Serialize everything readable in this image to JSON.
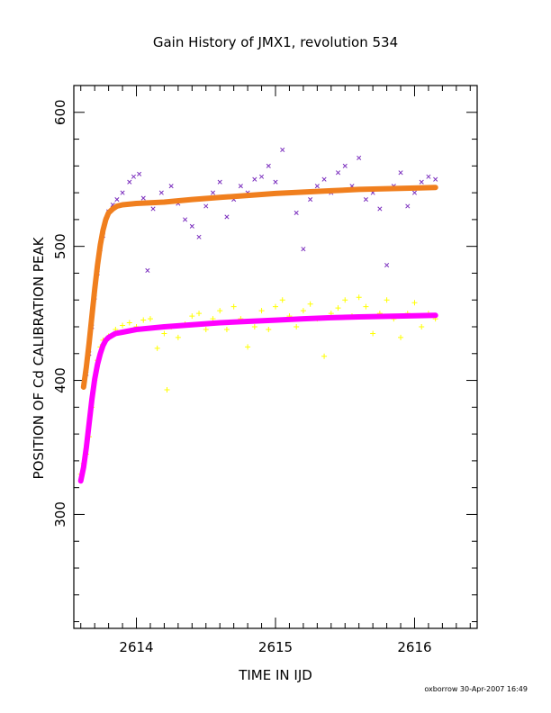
{
  "chart_data": {
    "type": "scatter",
    "title": "Gain History of JMX1, revolution 534",
    "xlabel": "TIME IN IJD",
    "ylabel": "POSITION OF Cd CALIBRATION PEAK",
    "xlim": [
      2613.55,
      2616.45
    ],
    "ylim": [
      215,
      620
    ],
    "x_ticks": [
      2614,
      2615,
      2616
    ],
    "x_tick_labels": [
      "2614",
      "2615",
      "2616"
    ],
    "y_ticks": [
      300,
      400,
      500,
      600
    ],
    "y_tick_labels": [
      "300",
      "400",
      "500",
      "600"
    ],
    "grid": false,
    "legend": "none",
    "series": [
      {
        "marker": "x",
        "color": "#7b2fbe",
        "points": [
          [
            2613.62,
            396
          ],
          [
            2613.64,
            405
          ],
          [
            2613.66,
            420
          ],
          [
            2613.68,
            440
          ],
          [
            2613.7,
            462
          ],
          [
            2613.72,
            480
          ],
          [
            2613.74,
            498
          ],
          [
            2613.76,
            508
          ],
          [
            2613.78,
            520
          ],
          [
            2613.8,
            526
          ],
          [
            2613.83,
            531
          ],
          [
            2613.86,
            535
          ],
          [
            2613.9,
            540
          ],
          [
            2613.95,
            548
          ],
          [
            2613.98,
            552
          ],
          [
            2614.02,
            554
          ],
          [
            2614.05,
            536
          ],
          [
            2614.08,
            482
          ],
          [
            2614.12,
            528
          ],
          [
            2614.18,
            540
          ],
          [
            2614.25,
            545
          ],
          [
            2614.3,
            532
          ],
          [
            2614.35,
            520
          ],
          [
            2614.4,
            515
          ],
          [
            2614.45,
            507
          ],
          [
            2614.5,
            530
          ],
          [
            2614.55,
            540
          ],
          [
            2614.6,
            548
          ],
          [
            2614.65,
            522
          ],
          [
            2614.7,
            535
          ],
          [
            2614.75,
            545
          ],
          [
            2614.8,
            540
          ],
          [
            2614.85,
            550
          ],
          [
            2614.9,
            552
          ],
          [
            2614.95,
            560
          ],
          [
            2615.0,
            548
          ],
          [
            2615.05,
            572
          ],
          [
            2615.1,
            540
          ],
          [
            2615.15,
            525
          ],
          [
            2615.2,
            498
          ],
          [
            2615.25,
            535
          ],
          [
            2615.3,
            545
          ],
          [
            2615.35,
            550
          ],
          [
            2615.4,
            540
          ],
          [
            2615.45,
            555
          ],
          [
            2615.5,
            560
          ],
          [
            2615.55,
            545
          ],
          [
            2615.6,
            566
          ],
          [
            2615.65,
            535
          ],
          [
            2615.7,
            540
          ],
          [
            2615.75,
            528
          ],
          [
            2615.8,
            486
          ],
          [
            2615.85,
            545
          ],
          [
            2615.9,
            555
          ],
          [
            2615.95,
            530
          ],
          [
            2616.0,
            540
          ],
          [
            2616.05,
            548
          ],
          [
            2616.1,
            552
          ],
          [
            2616.15,
            550
          ]
        ]
      },
      {
        "marker": "+",
        "color": "#ffff00",
        "points": [
          [
            2613.6,
            330
          ],
          [
            2613.62,
            338
          ],
          [
            2613.64,
            345
          ],
          [
            2613.66,
            358
          ],
          [
            2613.68,
            380
          ],
          [
            2613.7,
            400
          ],
          [
            2613.72,
            415
          ],
          [
            2613.74,
            425
          ],
          [
            2613.76,
            430
          ],
          [
            2613.8,
            433
          ],
          [
            2613.85,
            438
          ],
          [
            2613.9,
            441
          ],
          [
            2613.95,
            443
          ],
          [
            2614.0,
            440
          ],
          [
            2614.05,
            445
          ],
          [
            2614.1,
            446
          ],
          [
            2614.15,
            424
          ],
          [
            2614.2,
            435
          ],
          [
            2614.22,
            393
          ],
          [
            2614.25,
            440
          ],
          [
            2614.3,
            432
          ],
          [
            2614.35,
            442
          ],
          [
            2614.4,
            448
          ],
          [
            2614.45,
            450
          ],
          [
            2614.5,
            438
          ],
          [
            2614.55,
            446
          ],
          [
            2614.6,
            452
          ],
          [
            2614.65,
            438
          ],
          [
            2614.7,
            455
          ],
          [
            2614.75,
            446
          ],
          [
            2614.8,
            425
          ],
          [
            2614.85,
            440
          ],
          [
            2614.9,
            452
          ],
          [
            2614.95,
            438
          ],
          [
            2615.0,
            455
          ],
          [
            2615.05,
            460
          ],
          [
            2615.1,
            448
          ],
          [
            2615.15,
            440
          ],
          [
            2615.2,
            452
          ],
          [
            2615.25,
            457
          ],
          [
            2615.3,
            446
          ],
          [
            2615.35,
            418
          ],
          [
            2615.4,
            450
          ],
          [
            2615.45,
            454
          ],
          [
            2615.5,
            460
          ],
          [
            2615.55,
            448
          ],
          [
            2615.6,
            462
          ],
          [
            2615.65,
            455
          ],
          [
            2615.7,
            435
          ],
          [
            2615.75,
            450
          ],
          [
            2615.8,
            460
          ],
          [
            2615.85,
            446
          ],
          [
            2615.9,
            432
          ],
          [
            2615.95,
            450
          ],
          [
            2616.0,
            458
          ],
          [
            2616.05,
            440
          ],
          [
            2616.1,
            450
          ],
          [
            2616.15,
            446
          ]
        ]
      },
      {
        "marker": "dot-line",
        "color": "#f07f1e",
        "points": [
          [
            2613.62,
            395
          ],
          [
            2613.64,
            410
          ],
          [
            2613.66,
            428
          ],
          [
            2613.68,
            448
          ],
          [
            2613.7,
            468
          ],
          [
            2613.72,
            486
          ],
          [
            2613.74,
            501
          ],
          [
            2613.76,
            512
          ],
          [
            2613.78,
            520
          ],
          [
            2613.8,
            525
          ],
          [
            2613.83,
            528
          ],
          [
            2613.86,
            530
          ],
          [
            2613.9,
            531
          ],
          [
            2614.0,
            532
          ],
          [
            2614.2,
            533
          ],
          [
            2614.4,
            535
          ],
          [
            2614.6,
            536.5
          ],
          [
            2614.8,
            538
          ],
          [
            2615.0,
            539.5
          ],
          [
            2615.2,
            540.5
          ],
          [
            2615.4,
            541.5
          ],
          [
            2615.6,
            542.5
          ],
          [
            2615.8,
            543
          ],
          [
            2616.0,
            543.5
          ],
          [
            2616.15,
            544
          ]
        ]
      },
      {
        "marker": "dot-line",
        "color": "#ff00ff",
        "points": [
          [
            2613.6,
            325
          ],
          [
            2613.62,
            335
          ],
          [
            2613.64,
            350
          ],
          [
            2613.66,
            368
          ],
          [
            2613.68,
            386
          ],
          [
            2613.7,
            401
          ],
          [
            2613.72,
            412
          ],
          [
            2613.74,
            420
          ],
          [
            2613.76,
            426
          ],
          [
            2613.78,
            430
          ],
          [
            2613.8,
            432
          ],
          [
            2613.85,
            435
          ],
          [
            2613.9,
            436
          ],
          [
            2614.0,
            438
          ],
          [
            2614.2,
            440
          ],
          [
            2614.4,
            441.5
          ],
          [
            2614.6,
            443
          ],
          [
            2614.8,
            444
          ],
          [
            2615.0,
            445
          ],
          [
            2615.2,
            446
          ],
          [
            2615.4,
            446.8
          ],
          [
            2615.6,
            447.4
          ],
          [
            2615.8,
            447.8
          ],
          [
            2616.0,
            448.2
          ],
          [
            2616.15,
            448.5
          ]
        ]
      }
    ],
    "footer": "oxborrow 30-Apr-2007 16:49"
  }
}
